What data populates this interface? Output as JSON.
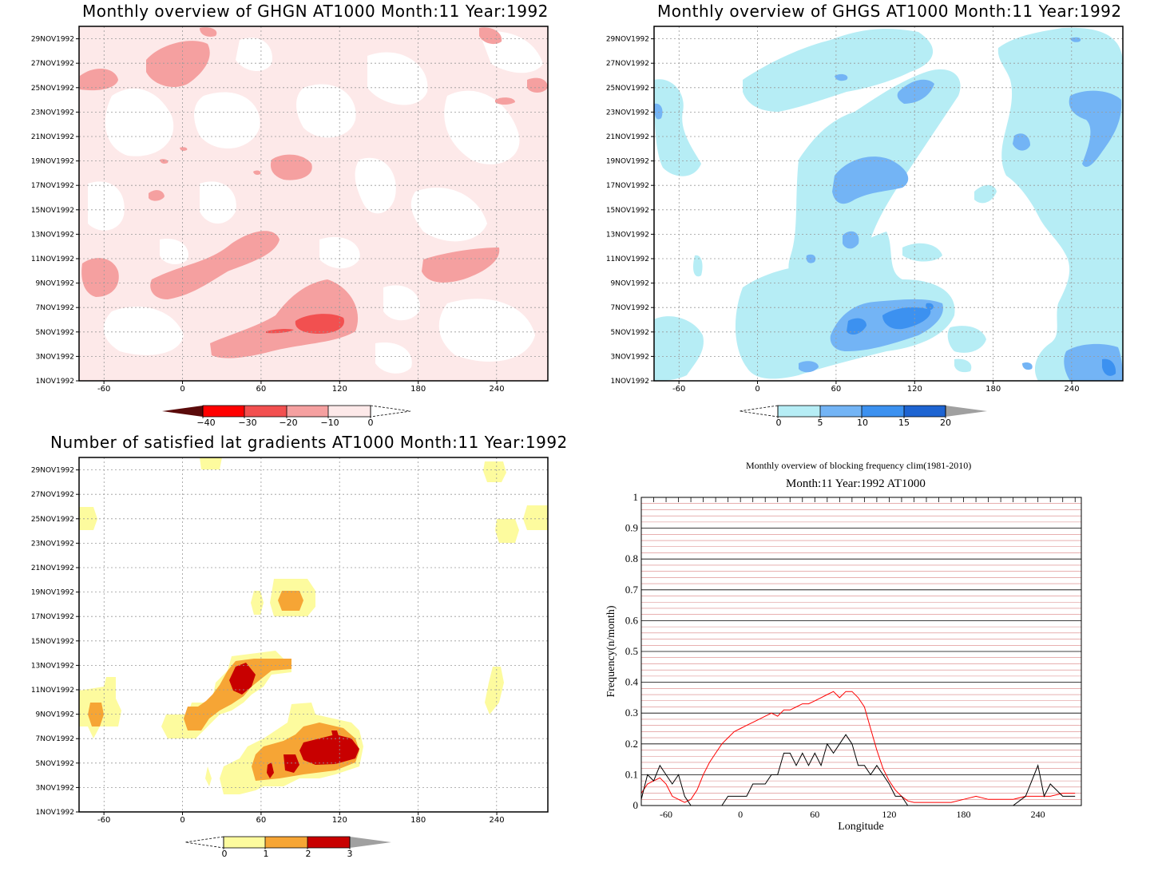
{
  "panels": {
    "ghgn": {
      "title": "Monthly overview of GHGN AT1000 Month:11 Year:1992",
      "colorbar": {
        "ticks": [
          "−40",
          "−30",
          "−20",
          "−10",
          "0"
        ],
        "colors": [
          "#5a0a0a",
          "#ff0000",
          "#f25050",
          "#f5a0a0",
          "#fde9e9"
        ]
      }
    },
    "ghgs": {
      "title": "Monthly overview of GHGS AT1000 Month:11 Year:1992",
      "colorbar": {
        "ticks": [
          "0",
          "5",
          "10",
          "15",
          "20"
        ],
        "colors": [
          "#b6edf5",
          "#73b4f5",
          "#3c91f0",
          "#1e64d2",
          "#a0a0a0"
        ]
      }
    },
    "gradients": {
      "title": "Number of satisfied lat gradients AT1000 Month:11 Year:1992",
      "colorbar": {
        "ticks": [
          "0",
          "1",
          "2",
          "3"
        ],
        "colors": [
          "#fdfb9e",
          "#f6a535",
          "#c80000",
          "#a0a0a0"
        ]
      }
    },
    "frequency": {
      "title": "Monthly overview of blocking frequency clim(1981-2010)",
      "subtitle": "Month:11 Year:1992  AT1000"
    }
  },
  "hovmoller_axes": {
    "y_ticks": [
      "1NOV1992",
      "3NOV1992",
      "5NOV1992",
      "7NOV1992",
      "9NOV1992",
      "11NOV1992",
      "13NOV1992",
      "15NOV1992",
      "17NOV1992",
      "19NOV1992",
      "21NOV1992",
      "23NOV1992",
      "25NOV1992",
      "27NOV1992",
      "29NOV1992"
    ],
    "x_ticks": [
      "-60",
      "0",
      "60",
      "120",
      "180",
      "240"
    ]
  },
  "chart_data": [
    {
      "type": "line",
      "title": "Monthly overview of blocking frequency clim(1981-2010)",
      "subtitle": "Month:11 Year:1992  AT1000",
      "xlabel": "Longitude",
      "ylabel": "Frequency(n/month)",
      "xlim": [
        -80,
        275
      ],
      "ylim": [
        0,
        1
      ],
      "x_ticks": [
        -60,
        0,
        60,
        120,
        180,
        240
      ],
      "y_ticks": [
        0,
        0.1,
        0.2,
        0.3,
        0.4,
        0.5,
        0.6,
        0.7,
        0.8,
        0.9,
        1
      ],
      "grid": true,
      "series": [
        {
          "color": "#ff0000",
          "x": [
            -80,
            -75,
            -70,
            -65,
            -60,
            -55,
            -50,
            -45,
            -40,
            -35,
            -30,
            -25,
            -20,
            -15,
            -10,
            -5,
            0,
            5,
            10,
            15,
            20,
            25,
            30,
            35,
            40,
            45,
            50,
            55,
            60,
            65,
            70,
            75,
            80,
            85,
            90,
            95,
            100,
            105,
            110,
            115,
            120,
            125,
            130,
            135,
            140,
            150,
            160,
            170,
            180,
            190,
            200,
            210,
            220,
            230,
            240,
            250,
            260,
            270
          ],
          "y": [
            0.04,
            0.07,
            0.08,
            0.09,
            0.07,
            0.03,
            0.02,
            0.01,
            0.02,
            0.05,
            0.1,
            0.14,
            0.17,
            0.2,
            0.22,
            0.24,
            0.25,
            0.26,
            0.27,
            0.28,
            0.29,
            0.3,
            0.29,
            0.31,
            0.31,
            0.32,
            0.33,
            0.33,
            0.34,
            0.35,
            0.36,
            0.37,
            0.35,
            0.37,
            0.37,
            0.35,
            0.32,
            0.25,
            0.18,
            0.12,
            0.08,
            0.05,
            0.03,
            0.015,
            0.01,
            0.01,
            0.01,
            0.01,
            0.02,
            0.03,
            0.02,
            0.02,
            0.02,
            0.03,
            0.03,
            0.03,
            0.04,
            0.04
          ]
        },
        {
          "color": "#000000",
          "x": [
            -80,
            -75,
            -70,
            -65,
            -60,
            -55,
            -50,
            -45,
            -40,
            -35,
            -30,
            -25,
            -20,
            -15,
            -10,
            -5,
            0,
            5,
            10,
            15,
            20,
            25,
            30,
            35,
            40,
            45,
            50,
            55,
            60,
            65,
            70,
            75,
            80,
            85,
            90,
            95,
            100,
            105,
            110,
            115,
            120,
            125,
            130,
            135,
            140,
            150,
            160,
            170,
            180,
            190,
            200,
            210,
            220,
            230,
            240,
            245,
            250,
            260,
            270
          ],
          "y": [
            0.02,
            0.1,
            0.08,
            0.13,
            0.1,
            0.07,
            0.1,
            0.03,
            0,
            0,
            0,
            0,
            0,
            0,
            0.03,
            0.03,
            0.03,
            0.03,
            0.07,
            0.07,
            0.07,
            0.1,
            0.1,
            0.17,
            0.17,
            0.13,
            0.17,
            0.13,
            0.17,
            0.13,
            0.2,
            0.17,
            0.2,
            0.23,
            0.2,
            0.13,
            0.13,
            0.1,
            0.13,
            0.1,
            0.07,
            0.03,
            0.03,
            0,
            0,
            0,
            0,
            0,
            0,
            0,
            0,
            0,
            0,
            0.03,
            0.13,
            0.03,
            0.07,
            0.03,
            0.03
          ]
        }
      ]
    }
  ]
}
